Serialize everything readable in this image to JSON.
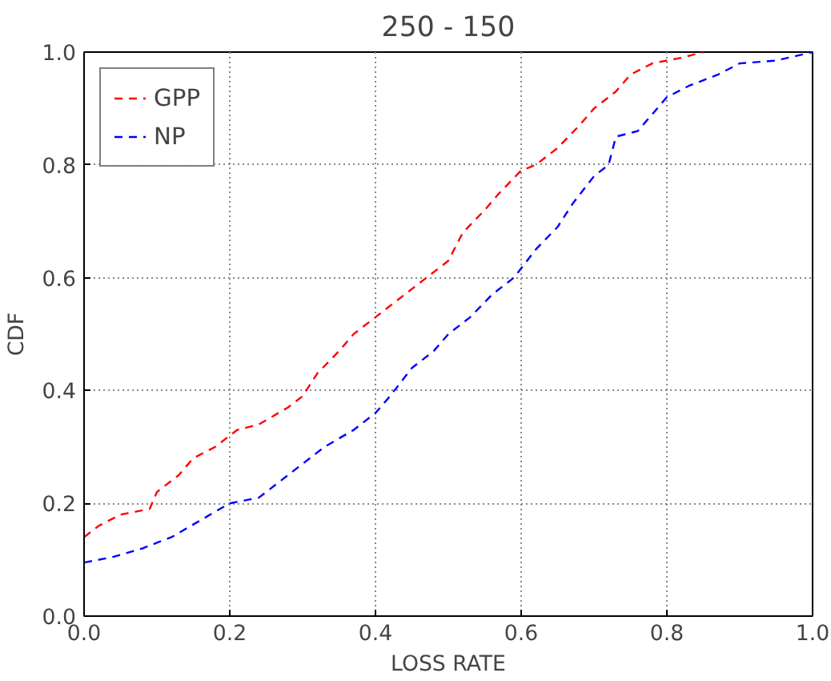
{
  "chart_data": {
    "type": "line",
    "title": "250 - 150",
    "xlabel": "LOSS RATE",
    "ylabel": "CDF",
    "xlim": [
      0,
      1
    ],
    "ylim": [
      0,
      1
    ],
    "xticks": [
      {
        "value": 0,
        "label": "0.0"
      },
      0.2,
      0.4,
      0.6,
      0.8,
      {
        "value": 1,
        "label": "1.0"
      }
    ],
    "yticks": [
      {
        "value": 0,
        "label": "0.0"
      },
      0.2,
      0.4,
      0.6,
      0.8,
      {
        "value": 1,
        "label": "1.0"
      }
    ],
    "grid": true,
    "legend": "top left",
    "line_style": "dashed",
    "series": [
      {
        "name": "GPP",
        "color": "#ff0000",
        "x": [
          0,
          0.02,
          0.05,
          0.09,
          0.1,
          0.13,
          0.15,
          0.18,
          0.21,
          0.24,
          0.28,
          0.3,
          0.32,
          0.35,
          0.37,
          0.4,
          0.42,
          0.44,
          0.47,
          0.5,
          0.52,
          0.55,
          0.57,
          0.6,
          0.62,
          0.65,
          0.68,
          0.7,
          0.73,
          0.75,
          0.78,
          0.82,
          0.85
        ],
        "values": [
          0.14,
          0.16,
          0.18,
          0.19,
          0.22,
          0.25,
          0.28,
          0.3,
          0.33,
          0.34,
          0.37,
          0.39,
          0.43,
          0.47,
          0.5,
          0.53,
          0.55,
          0.57,
          0.6,
          0.63,
          0.68,
          0.72,
          0.75,
          0.79,
          0.8,
          0.83,
          0.87,
          0.9,
          0.93,
          0.96,
          0.98,
          0.99,
          1.0
        ]
      },
      {
        "name": "NP",
        "color": "#0000ff",
        "x": [
          0,
          0.04,
          0.08,
          0.12,
          0.16,
          0.2,
          0.24,
          0.27,
          0.3,
          0.33,
          0.37,
          0.4,
          0.42,
          0.45,
          0.48,
          0.5,
          0.53,
          0.56,
          0.59,
          0.62,
          0.65,
          0.67,
          0.7,
          0.72,
          0.73,
          0.76,
          0.78,
          0.8,
          0.83,
          0.87,
          0.9,
          0.95,
          1.0
        ],
        "values": [
          0.095,
          0.105,
          0.12,
          0.14,
          0.17,
          0.2,
          0.21,
          0.24,
          0.27,
          0.3,
          0.33,
          0.36,
          0.39,
          0.44,
          0.47,
          0.5,
          0.53,
          0.57,
          0.6,
          0.65,
          0.69,
          0.73,
          0.78,
          0.8,
          0.85,
          0.86,
          0.89,
          0.92,
          0.94,
          0.96,
          0.98,
          0.985,
          1.0
        ]
      }
    ]
  }
}
